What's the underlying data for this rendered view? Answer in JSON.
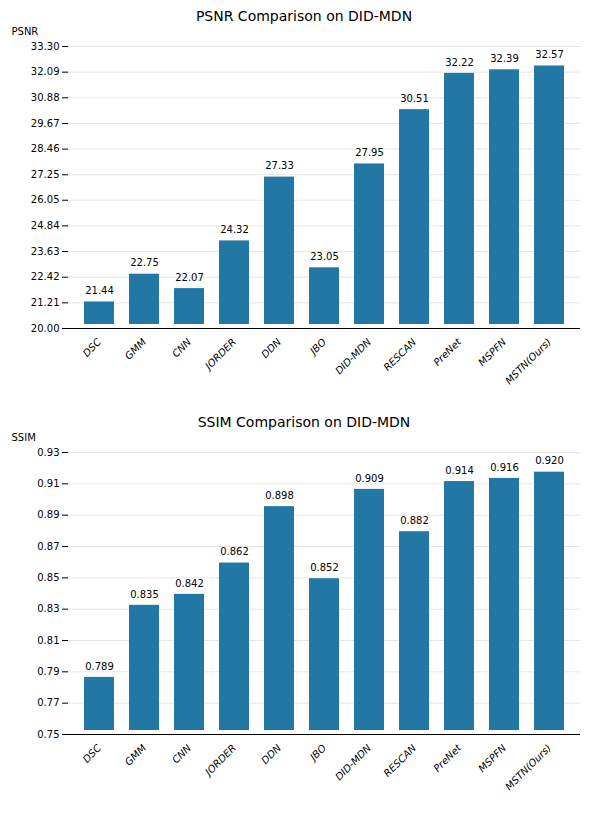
{
  "chart_data": [
    {
      "type": "bar",
      "title": "PSNR Comparison on DID-MDN",
      "categories": [
        "DSC",
        "GMM",
        "CNN",
        "JORDER",
        "DDN",
        "JBO",
        "DID-MDN",
        "RESCAN",
        "PreNet",
        "MSPFN",
        "MSTN(Ours)"
      ],
      "values": [
        21.44,
        22.75,
        22.07,
        24.32,
        27.33,
        23.05,
        27.95,
        30.51,
        32.22,
        32.39,
        32.57
      ],
      "ylabel": "PSNR",
      "color": "#2377a4",
      "ylim": [
        20.0,
        33.3
      ],
      "yticks": [
        {
          "value": 20.0,
          "label": "20.00"
        },
        21.21,
        22.42,
        23.63,
        24.84,
        26.05,
        27.25,
        28.46,
        29.67,
        30.88,
        32.09,
        {
          "value": 33.3,
          "label": "33.30"
        }
      ],
      "grid": true,
      "data_labels": true
    },
    {
      "type": "bar",
      "title": "SSIM Comparison on DID-MDN",
      "categories": [
        "DSC",
        "GMM",
        "CNN",
        "JORDER",
        "DDN",
        "JBO",
        "DID-MDN",
        "RESCAN",
        "PreNet",
        "MSPFN",
        "MSTN(Ours)"
      ],
      "values": [
        0.789,
        0.835,
        0.842,
        0.862,
        0.898,
        0.852,
        0.909,
        0.882,
        0.914,
        0.916,
        0.92
      ],
      "value_labels": [
        "0.789",
        "0.835",
        "0.842",
        "0.862",
        "0.898",
        "0.852",
        "0.909",
        "0.882",
        "0.914",
        "0.916",
        "0.920"
      ],
      "ylabel": "SSIM",
      "color": "#2377a4",
      "ylim": [
        0.75,
        0.93
      ],
      "yticks": [
        0.75,
        0.77,
        0.79,
        0.81,
        0.83,
        0.85,
        0.87,
        0.89,
        0.91,
        0.93
      ],
      "grid": true,
      "data_labels": true
    }
  ]
}
